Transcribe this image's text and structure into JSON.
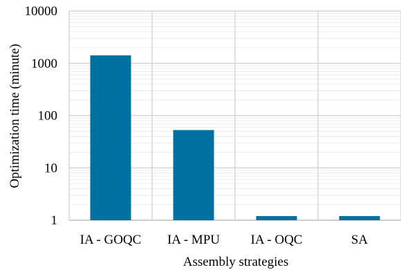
{
  "chart_data": {
    "type": "bar",
    "title": "",
    "xlabel": "Assembly strategies",
    "ylabel": "Optimization time (minute)",
    "yscale": "log",
    "ylim": [
      1,
      10000
    ],
    "yticks": [
      "1",
      "10",
      "100",
      "1000",
      "10000"
    ],
    "categories": [
      "IA - GOQC",
      "IA - MPU",
      "IA - OQC",
      "SA"
    ],
    "values": [
      1420,
      53,
      1.2,
      1.2
    ],
    "bar_color": "#0070a0",
    "grid": {
      "major": true,
      "minor": true,
      "vertical_category_dividers": true
    }
  }
}
